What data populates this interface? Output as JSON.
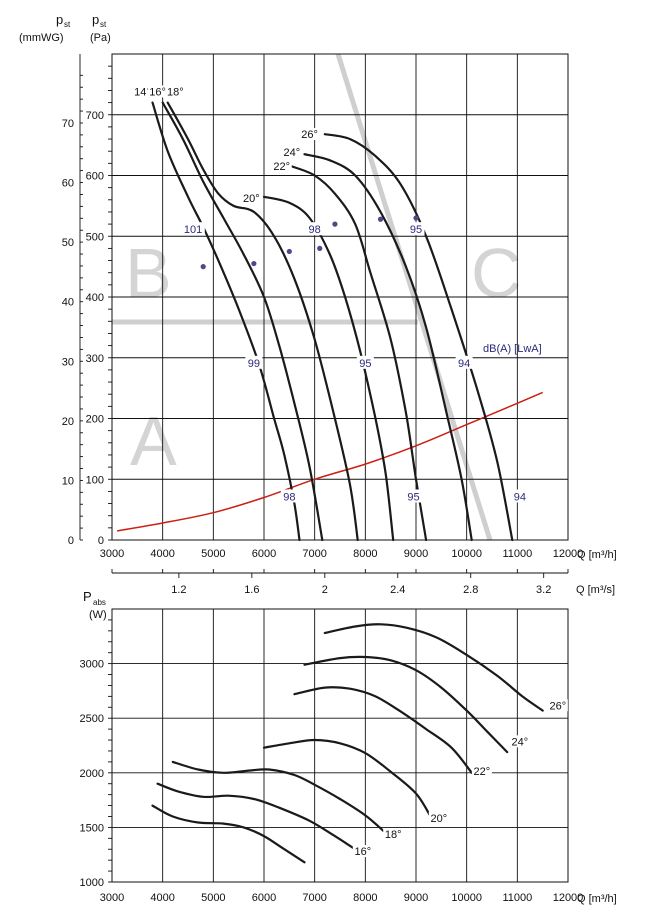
{
  "top_chart": {
    "ylabels": {
      "mmwg_symbol": "p",
      "mmwg_sub": "st",
      "mmwg_unit": "(mmWG)",
      "pa_symbol": "p",
      "pa_sub": "st",
      "pa_unit": "(Pa)"
    },
    "x_unit_m3h": "Q [m³/h]",
    "x_unit_m3s": "Q [m³/s]",
    "db_unit": "dB(A) [LwA]",
    "zone_labels": [
      "B",
      "C",
      "A"
    ],
    "colors": {
      "curve": "#1a1a1a",
      "system_curve": "#cc1e12",
      "zone": "#cfcfcf",
      "db_label": "#2a2a7a"
    }
  },
  "bottom_chart": {
    "ylabels": {
      "symbol": "P",
      "sub": "abs",
      "unit": "(W)"
    },
    "x_unit_m3h": "Q [m³/h]"
  },
  "chart_data": [
    {
      "type": "line",
      "x_axis": {
        "ticks": [
          3000,
          4000,
          5000,
          6000,
          7000,
          8000,
          9000,
          10000,
          11000,
          12000
        ],
        "range": [
          3000,
          12000
        ]
      },
      "x_axis_secondary": {
        "ticks": [
          1.2,
          1.6,
          2,
          2.4,
          2.8,
          3.2
        ],
        "tick_labels": [
          "1.2",
          "1.6",
          "2",
          "2.4",
          "2.8",
          "3.2"
        ]
      },
      "y_axis_pa": {
        "ticks": [
          0,
          100,
          200,
          300,
          400,
          500,
          600,
          700
        ],
        "range": [
          0,
          800
        ]
      },
      "y_axis_mmwg": {
        "ticks": [
          0,
          10,
          20,
          30,
          40,
          50,
          60,
          70
        ]
      },
      "series": [
        {
          "name": "14°",
          "points": [
            [
              3800,
              720
            ],
            [
              4100,
              640
            ],
            [
              4500,
              565
            ],
            [
              4800,
              515
            ],
            [
              5100,
              460
            ],
            [
              5500,
              380
            ],
            [
              5900,
              290
            ],
            [
              6200,
              200
            ],
            [
              6400,
              140
            ],
            [
              6600,
              60
            ],
            [
              6700,
              0
            ]
          ]
        },
        {
          "name": "16°",
          "points": [
            [
              4000,
              720
            ],
            [
              4400,
              660
            ],
            [
              4800,
              590
            ],
            [
              5200,
              530
            ],
            [
              5600,
              470
            ],
            [
              6000,
              400
            ],
            [
              6300,
              320
            ],
            [
              6600,
              225
            ],
            [
              6900,
              120
            ],
            [
              7150,
              0
            ]
          ]
        },
        {
          "name": "18°",
          "points": [
            [
              4100,
              720
            ],
            [
              4500,
              660
            ],
            [
              4800,
              610
            ],
            [
              5100,
              570
            ],
            [
              5400,
              550
            ],
            [
              5800,
              540
            ],
            [
              6200,
              500
            ],
            [
              6600,
              430
            ],
            [
              7000,
              330
            ],
            [
              7400,
              200
            ],
            [
              7700,
              90
            ],
            [
              7850,
              0
            ]
          ]
        },
        {
          "name": "20°",
          "points": [
            [
              6000,
              565
            ],
            [
              6500,
              555
            ],
            [
              6900,
              530
            ],
            [
              7300,
              470
            ],
            [
              7600,
              400
            ],
            [
              7900,
              310
            ],
            [
              8200,
              200
            ],
            [
              8400,
              110
            ],
            [
              8550,
              0
            ]
          ]
        },
        {
          "name": "22°",
          "points": [
            [
              6550,
              615
            ],
            [
              7000,
              600
            ],
            [
              7400,
              570
            ],
            [
              7800,
              520
            ],
            [
              8100,
              440
            ],
            [
              8500,
              330
            ],
            [
              8800,
              210
            ],
            [
              9000,
              100
            ],
            [
              9200,
              0
            ]
          ]
        },
        {
          "name": "24°",
          "points": [
            [
              6800,
              635
            ],
            [
              7300,
              625
            ],
            [
              7800,
              600
            ],
            [
              8300,
              540
            ],
            [
              8800,
              450
            ],
            [
              9200,
              350
            ],
            [
              9600,
              210
            ],
            [
              9900,
              100
            ],
            [
              10100,
              0
            ]
          ]
        },
        {
          "name": "26°",
          "points": [
            [
              7200,
              668
            ],
            [
              7700,
              660
            ],
            [
              8200,
              632
            ],
            [
              8700,
              585
            ],
            [
              9200,
              500
            ],
            [
              9700,
              380
            ],
            [
              10200,
              250
            ],
            [
              10600,
              130
            ],
            [
              10900,
              0
            ]
          ]
        }
      ],
      "system_curve": {
        "name": "system",
        "points": [
          [
            3100,
            15
          ],
          [
            4000,
            28
          ],
          [
            5000,
            45
          ],
          [
            6000,
            70
          ],
          [
            7000,
            100
          ],
          [
            8000,
            125
          ],
          [
            9000,
            155
          ],
          [
            10000,
            190
          ],
          [
            11000,
            225
          ],
          [
            11500,
            243
          ]
        ]
      },
      "db_labels": [
        {
          "text": "101",
          "x": 4600,
          "y": 510
        },
        {
          "text": "98",
          "x": 7000,
          "y": 510
        },
        {
          "text": "95",
          "x": 9000,
          "y": 510
        },
        {
          "text": "99",
          "x": 5800,
          "y": 290
        },
        {
          "text": "95",
          "x": 8000,
          "y": 290
        },
        {
          "text": "94",
          "x": 9950,
          "y": 290
        },
        {
          "text": "98",
          "x": 6500,
          "y": 70
        },
        {
          "text": "95",
          "x": 8950,
          "y": 70
        },
        {
          "text": "94",
          "x": 11050,
          "y": 70
        }
      ],
      "blade_labels": [
        {
          "text": "14°",
          "x": 3600,
          "y": 735
        },
        {
          "text": "16°",
          "x": 3900,
          "y": 735
        },
        {
          "text": "18°",
          "x": 4250,
          "y": 735
        },
        {
          "text": "20°",
          "x": 5750,
          "y": 560
        },
        {
          "text": "22°",
          "x": 6350,
          "y": 612
        },
        {
          "text": "24°",
          "x": 6550,
          "y": 635
        },
        {
          "text": "26°",
          "x": 6900,
          "y": 665
        }
      ],
      "dots": [
        [
          4800,
          450
        ],
        [
          5800,
          455
        ],
        [
          6500,
          475
        ],
        [
          7100,
          480
        ],
        [
          7400,
          520
        ],
        [
          8300,
          528
        ],
        [
          9000,
          530
        ]
      ]
    },
    {
      "type": "line",
      "x_axis": {
        "ticks": [
          3000,
          4000,
          5000,
          6000,
          7000,
          8000,
          9000,
          10000,
          11000,
          12000
        ],
        "range": [
          3000,
          12000
        ]
      },
      "y_axis": {
        "ticks": [
          1000,
          1500,
          2000,
          2500,
          3000
        ],
        "range": [
          1000,
          3500
        ]
      },
      "series": [
        {
          "name": "14°",
          "points": [
            [
              3800,
              1700
            ],
            [
              4200,
              1600
            ],
            [
              4700,
              1545
            ],
            [
              5200,
              1535
            ],
            [
              5600,
              1500
            ],
            [
              6000,
              1420
            ],
            [
              6400,
              1300
            ],
            [
              6800,
              1180
            ]
          ]
        },
        {
          "name": "16°",
          "points": [
            [
              3900,
              1900
            ],
            [
              4300,
              1830
            ],
            [
              4800,
              1780
            ],
            [
              5300,
              1790
            ],
            [
              5800,
              1760
            ],
            [
              6300,
              1680
            ],
            [
              6900,
              1560
            ],
            [
              7400,
              1420
            ],
            [
              7800,
              1300
            ]
          ]
        },
        {
          "name": "18°",
          "points": [
            [
              4200,
              2100
            ],
            [
              4700,
              2030
            ],
            [
              5200,
              2000
            ],
            [
              5700,
              2020
            ],
            [
              6100,
              2030
            ],
            [
              6600,
              1980
            ],
            [
              7000,
              1890
            ],
            [
              7500,
              1760
            ],
            [
              8000,
              1610
            ],
            [
              8400,
              1450
            ]
          ]
        },
        {
          "name": "20°",
          "points": [
            [
              6000,
              2230
            ],
            [
              6500,
              2270
            ],
            [
              7000,
              2300
            ],
            [
              7500,
              2270
            ],
            [
              8000,
              2180
            ],
            [
              8500,
              2010
            ],
            [
              9000,
              1810
            ],
            [
              9300,
              1590
            ]
          ]
        },
        {
          "name": "22°",
          "points": [
            [
              6600,
              2720
            ],
            [
              7200,
              2780
            ],
            [
              7700,
              2770
            ],
            [
              8200,
              2700
            ],
            [
              8700,
              2560
            ],
            [
              9200,
              2400
            ],
            [
              9700,
              2230
            ],
            [
              10100,
              2000
            ]
          ]
        },
        {
          "name": "24°",
          "points": [
            [
              6800,
              2990
            ],
            [
              7500,
              3050
            ],
            [
              8000,
              3060
            ],
            [
              8500,
              3030
            ],
            [
              9000,
              2940
            ],
            [
              9500,
              2780
            ],
            [
              10000,
              2570
            ],
            [
              10400,
              2380
            ],
            [
              10800,
              2190
            ]
          ]
        },
        {
          "name": "26°",
          "points": [
            [
              7200,
              3280
            ],
            [
              7800,
              3340
            ],
            [
              8300,
              3360
            ],
            [
              8800,
              3330
            ],
            [
              9400,
              3240
            ],
            [
              10000,
              3080
            ],
            [
              10600,
              2890
            ],
            [
              11100,
              2700
            ],
            [
              11500,
              2570
            ]
          ]
        }
      ],
      "end_labels": [
        {
          "text": "16°",
          "x": 7950,
          "y": 1265
        },
        {
          "text": "18°",
          "x": 8550,
          "y": 1420
        },
        {
          "text": "20°",
          "x": 9450,
          "y": 1570
        },
        {
          "text": "22°",
          "x": 10300,
          "y": 2000
        },
        {
          "text": "24°",
          "x": 11050,
          "y": 2270
        },
        {
          "text": "26°",
          "x": 11800,
          "y": 2600
        }
      ]
    }
  ]
}
